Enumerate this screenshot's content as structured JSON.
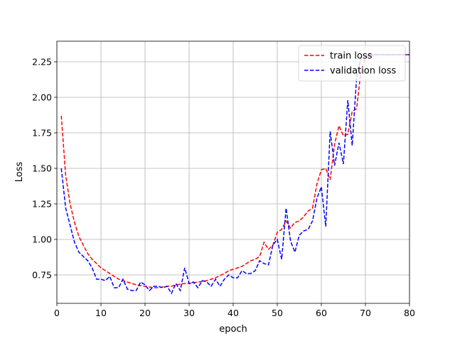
{
  "chart_data": {
    "type": "line",
    "xlabel": "epoch",
    "ylabel": "Loss",
    "xlim": [
      0,
      80
    ],
    "ylim": [
      0.55,
      2.395
    ],
    "x_ticks": [
      0,
      10,
      20,
      30,
      40,
      50,
      60,
      70,
      80
    ],
    "x_tick_labels": [
      "0",
      "10",
      "20",
      "30",
      "40",
      "50",
      "60",
      "70",
      "80"
    ],
    "y_ticks": [
      0.75,
      1.0,
      1.25,
      1.5,
      1.75,
      2.0,
      2.25
    ],
    "y_tick_labels": [
      "0.75",
      "1.00",
      "1.25",
      "1.50",
      "1.75",
      "2.00",
      "2.25"
    ],
    "grid": true,
    "legend_position": "top-right",
    "x": [
      1,
      2,
      3,
      4,
      5,
      6,
      7,
      8,
      9,
      10,
      11,
      12,
      13,
      14,
      15,
      16,
      17,
      18,
      19,
      20,
      21,
      22,
      23,
      24,
      25,
      26,
      27,
      28,
      29,
      30,
      31,
      32,
      33,
      34,
      35,
      36,
      37,
      38,
      39,
      40,
      41,
      42,
      43,
      44,
      45,
      46,
      47,
      48,
      49,
      50,
      51,
      52,
      53,
      54,
      55,
      56,
      57,
      58,
      59,
      60,
      61,
      62,
      63,
      64,
      65,
      66,
      67,
      68,
      69,
      70,
      71,
      72,
      73,
      74,
      75,
      76,
      77,
      78,
      79,
      80
    ],
    "series": [
      {
        "name": "train loss",
        "color": "#ff0000",
        "values": [
          1.87,
          1.45,
          1.25,
          1.12,
          1.02,
          0.96,
          0.9,
          0.86,
          0.83,
          0.8,
          0.78,
          0.76,
          0.74,
          0.72,
          0.71,
          0.7,
          0.69,
          0.68,
          0.675,
          0.67,
          0.665,
          0.66,
          0.66,
          0.665,
          0.67,
          0.67,
          0.68,
          0.685,
          0.69,
          0.69,
          0.695,
          0.7,
          0.705,
          0.71,
          0.72,
          0.73,
          0.745,
          0.76,
          0.78,
          0.79,
          0.8,
          0.81,
          0.83,
          0.85,
          0.86,
          0.88,
          0.98,
          0.93,
          0.96,
          1.05,
          1.07,
          1.13,
          1.08,
          1.12,
          1.13,
          1.16,
          1.2,
          1.22,
          1.39,
          1.49,
          1.5,
          1.42,
          1.67,
          1.8,
          1.73,
          1.74,
          1.9,
          1.92,
          2.19,
          2.28,
          2.29,
          2.3,
          2.3,
          2.3,
          2.3,
          2.3,
          2.3,
          2.3,
          2.3,
          2.3
        ]
      },
      {
        "name": "validation loss",
        "color": "#0000ff",
        "values": [
          1.5,
          1.22,
          1.1,
          0.98,
          0.91,
          0.88,
          0.85,
          0.8,
          0.72,
          0.72,
          0.71,
          0.74,
          0.66,
          0.66,
          0.72,
          0.65,
          0.64,
          0.64,
          0.7,
          0.68,
          0.64,
          0.67,
          0.67,
          0.66,
          0.67,
          0.62,
          0.69,
          0.64,
          0.8,
          0.69,
          0.7,
          0.66,
          0.71,
          0.7,
          0.67,
          0.72,
          0.67,
          0.72,
          0.75,
          0.73,
          0.73,
          0.78,
          0.76,
          0.76,
          0.78,
          0.85,
          0.83,
          0.82,
          0.96,
          1.0,
          0.86,
          1.22,
          0.99,
          0.91,
          1.03,
          1.06,
          1.07,
          1.13,
          1.29,
          1.37,
          1.09,
          1.76,
          1.52,
          1.68,
          1.53,
          1.98,
          1.66,
          2.14,
          2.28,
          2.29,
          2.3,
          2.3,
          2.3,
          2.3,
          2.3,
          2.3,
          2.3,
          2.3,
          2.3,
          2.3
        ]
      }
    ]
  }
}
